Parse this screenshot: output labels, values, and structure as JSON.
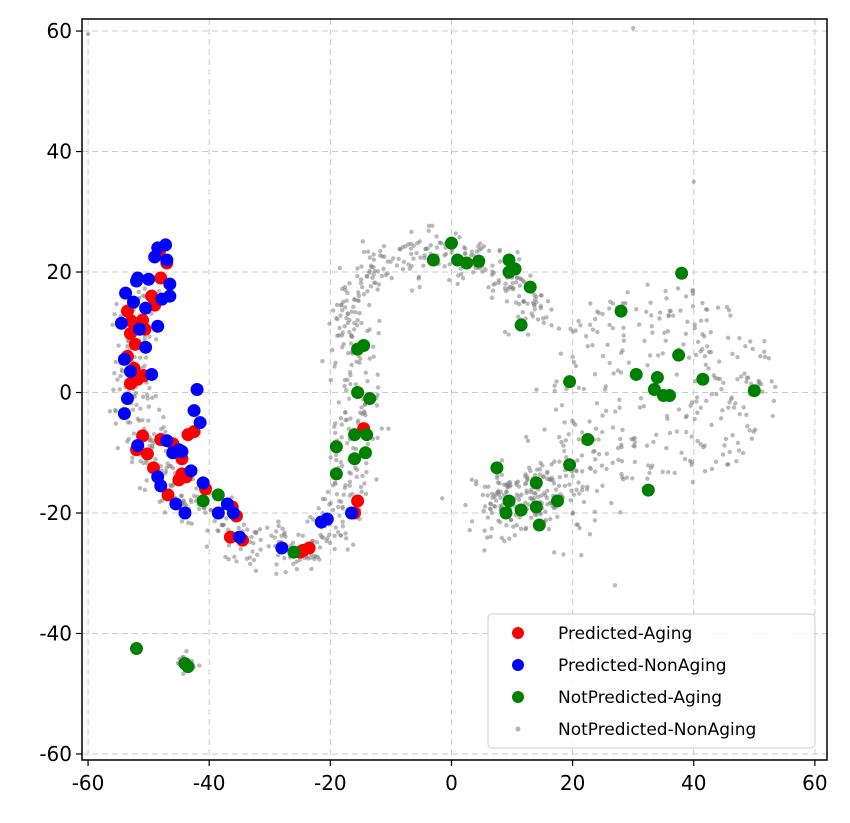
{
  "chart_data": {
    "type": "scatter",
    "title": "",
    "xlabel": "",
    "ylabel": "",
    "xlim": [
      -61,
      62
    ],
    "ylim": [
      -61,
      62
    ],
    "xticks": [
      -60,
      -40,
      -20,
      0,
      20,
      40,
      60
    ],
    "yticks": [
      -60,
      -40,
      -20,
      0,
      20,
      40,
      60
    ],
    "xtick_labels": [
      "-60",
      "-40",
      "-20",
      "0",
      "20",
      "40",
      "60"
    ],
    "ytick_labels": [
      "-60",
      "-40",
      "-20",
      "0",
      "20",
      "40",
      "60"
    ],
    "grid": true,
    "legend_position": "lower right",
    "series": [
      {
        "name": "Predicted-Aging",
        "color": "#ff0000",
        "points": [
          [
            -53.5,
            13.5
          ],
          [
            -52.8,
            11.8
          ],
          [
            -53.0,
            9.8
          ],
          [
            -51.0,
            12.0
          ],
          [
            -50.6,
            10.5
          ],
          [
            -52.2,
            8.0
          ],
          [
            -53.5,
            6.0
          ],
          [
            -52.4,
            4.0
          ],
          [
            -51.8,
            2.2
          ],
          [
            -53.0,
            1.5
          ],
          [
            -50.8,
            2.8
          ],
          [
            -49.5,
            16.0
          ],
          [
            -48.2,
            23.5
          ],
          [
            -47.0,
            21.5
          ],
          [
            -48.0,
            19.0
          ],
          [
            -49.0,
            14.5
          ],
          [
            -52.0,
            -9.5
          ],
          [
            -51.0,
            -7.2
          ],
          [
            -50.2,
            -10.2
          ],
          [
            -48.0,
            -7.8
          ],
          [
            -46.0,
            -8.5
          ],
          [
            -44.5,
            -11.0
          ],
          [
            -43.5,
            -7.0
          ],
          [
            -42.5,
            -6.5
          ],
          [
            -45.0,
            -14.5
          ],
          [
            -46.8,
            -17.0
          ],
          [
            -43.8,
            -14.0
          ],
          [
            -40.6,
            -16.0
          ],
          [
            -36.2,
            -19.0
          ],
          [
            -35.5,
            -20.5
          ],
          [
            -36.5,
            -24.0
          ],
          [
            -34.5,
            -24.5
          ],
          [
            -25.0,
            -26.5
          ],
          [
            -23.5,
            -25.8
          ],
          [
            -24.5,
            -26.2
          ],
          [
            -15.5,
            -18.0
          ],
          [
            -14.5,
            -6.0
          ],
          [
            -16.0,
            -20.0
          ],
          [
            -44.5,
            -13.5
          ],
          [
            -49.2,
            -12.5
          ]
        ]
      },
      {
        "name": "Predicted-NonAging",
        "color": "#0000ff",
        "points": [
          [
            -54.5,
            11.5
          ],
          [
            -53.8,
            16.5
          ],
          [
            -52.5,
            15.0
          ],
          [
            -52.0,
            18.5
          ],
          [
            -51.5,
            10.5
          ],
          [
            -50.0,
            18.8
          ],
          [
            -49.0,
            22.5
          ],
          [
            -48.5,
            24.0
          ],
          [
            -47.2,
            24.5
          ],
          [
            -47.0,
            22.0
          ],
          [
            -46.5,
            18.0
          ],
          [
            -47.8,
            15.5
          ],
          [
            -46.5,
            16.0
          ],
          [
            -48.5,
            11.0
          ],
          [
            -50.5,
            7.5
          ],
          [
            -54.0,
            5.5
          ],
          [
            -53.0,
            3.5
          ],
          [
            -49.5,
            3.0
          ],
          [
            -54.0,
            -3.5
          ],
          [
            -53.5,
            -1.0
          ],
          [
            -51.8,
            -8.8
          ],
          [
            -48.5,
            -14.0
          ],
          [
            -48.0,
            -15.5
          ],
          [
            -47.0,
            -8.0
          ],
          [
            -46.0,
            -10.0
          ],
          [
            -45.0,
            -9.5
          ],
          [
            -44.0,
            -20.0
          ],
          [
            -45.5,
            -18.5
          ],
          [
            -42.5,
            -3.0
          ],
          [
            -42.0,
            0.5
          ],
          [
            -41.5,
            -5.0
          ],
          [
            -43.0,
            -13.0
          ],
          [
            -41.0,
            -15.0
          ],
          [
            -38.5,
            -20.0
          ],
          [
            -37.0,
            -18.5
          ],
          [
            -36.0,
            -20.0
          ],
          [
            -35.0,
            -24.0
          ],
          [
            -28.0,
            -25.8
          ],
          [
            -21.5,
            -21.5
          ],
          [
            -20.5,
            -21.0
          ],
          [
            -16.5,
            -20.0
          ],
          [
            -44.5,
            -9.8
          ],
          [
            -50.5,
            14.0
          ],
          [
            -51.8,
            19.0
          ]
        ]
      },
      {
        "name": "NotPredicted-Aging",
        "color": "#008000",
        "points": [
          [
            -3.0,
            22.0
          ],
          [
            0.0,
            24.8
          ],
          [
            1.0,
            22.0
          ],
          [
            2.5,
            21.5
          ],
          [
            4.5,
            21.8
          ],
          [
            9.5,
            22.0
          ],
          [
            9.5,
            20.0
          ],
          [
            10.5,
            20.5
          ],
          [
            13.0,
            17.5
          ],
          [
            11.5,
            11.2
          ],
          [
            -15.5,
            7.2
          ],
          [
            -14.5,
            7.8
          ],
          [
            -15.5,
            0.0
          ],
          [
            -13.5,
            -1.0
          ],
          [
            -16.0,
            -7.0
          ],
          [
            -14.0,
            -7.0
          ],
          [
            -14.2,
            -10.0
          ],
          [
            -16.0,
            -11.0
          ],
          [
            -19.0,
            -9.0
          ],
          [
            -19.0,
            -13.5
          ],
          [
            7.5,
            -12.5
          ],
          [
            9.5,
            -18.0
          ],
          [
            9.0,
            -20.0
          ],
          [
            11.5,
            -19.5
          ],
          [
            14.0,
            -15.0
          ],
          [
            14.0,
            -19.0
          ],
          [
            14.5,
            -22.0
          ],
          [
            17.5,
            -18.0
          ],
          [
            19.5,
            -12.0
          ],
          [
            19.5,
            1.8
          ],
          [
            22.5,
            -7.8
          ],
          [
            28.0,
            13.5
          ],
          [
            30.5,
            3.0
          ],
          [
            33.5,
            0.5
          ],
          [
            34.0,
            2.5
          ],
          [
            35.0,
            -0.5
          ],
          [
            36.0,
            -0.5
          ],
          [
            37.5,
            6.2
          ],
          [
            38.0,
            19.8
          ],
          [
            41.5,
            2.2
          ],
          [
            50.0,
            0.3
          ],
          [
            32.5,
            -16.2
          ],
          [
            -26.0,
            -26.5
          ],
          [
            -38.5,
            -17.0
          ],
          [
            -41.0,
            -18.0
          ],
          [
            -52.0,
            -42.5
          ],
          [
            -44.0,
            -45.0
          ],
          [
            -43.5,
            -45.5
          ]
        ]
      },
      {
        "name": "NotPredicted-NonAging",
        "color": "#808080"
      }
    ]
  }
}
